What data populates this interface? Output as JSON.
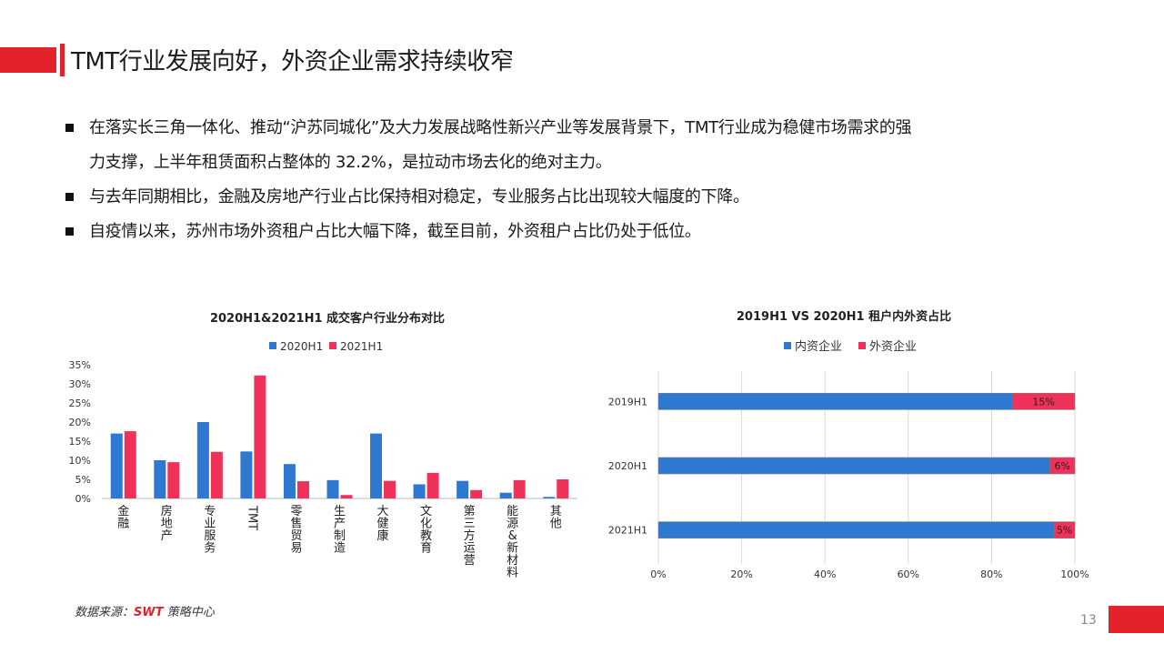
{
  "header": {
    "title": "TMT行业发展向好，外资企业需求持续收窄"
  },
  "bullets": [
    {
      "line1": "在落实长三角一体化、推动“沪苏同城化”及大力发展战略性新兴产业等发展背景下，TMT行业成为稳健市场需求的强",
      "line2": "力支撑，上半年租赁面积占整体的 32.2%，是拉动市场去化的绝对主力。"
    },
    {
      "line1": "与去年同期相比，金融及房地产行业占比保持相对稳定，专业服务占比出现较大幅度的下降。"
    },
    {
      "line1": "自疫情以来，苏州市场外资租户占比大幅下降，截至目前，外资租户占比仍处于低位。"
    }
  ],
  "chart_data": [
    {
      "type": "bar",
      "title": "2020H1&2021H1 成交客户行业分布对比",
      "categories": [
        "金融",
        "房地产",
        "专业服务",
        "TMT",
        "零售贸易",
        "生产制造",
        "大健康",
        "文化教育",
        "第三方运营",
        "能源&新材料",
        "其他"
      ],
      "series": [
        {
          "name": "2020H1",
          "color": "#2e78d2",
          "values": [
            17,
            10,
            20,
            12.3,
            9,
            4.8,
            17,
            3.7,
            4.6,
            1.5,
            0.4
          ]
        },
        {
          "name": "2021H1",
          "color": "#f0325a",
          "values": [
            17.6,
            9.5,
            12.2,
            32.2,
            4.5,
            0.9,
            4.6,
            6.7,
            2.2,
            4.8,
            5
          ]
        }
      ],
      "yticks": [
        "35%",
        "30%",
        "25%",
        "20%",
        "15%",
        "10%",
        "5%",
        "0%"
      ],
      "ylim": [
        0,
        35
      ],
      "legend": "top"
    },
    {
      "type": "bar",
      "orientation": "horizontal-stacked",
      "title": "2019H1 VS 2020H1 租户内外资占比",
      "categories": [
        "2019H1",
        "2020H1",
        "2021H1"
      ],
      "series": [
        {
          "name": "内资企业",
          "color": "#2e78d2",
          "values": [
            85,
            94,
            95
          ]
        },
        {
          "name": "外资企业",
          "color": "#f0325a",
          "values": [
            15,
            6,
            5
          ]
        }
      ],
      "data_labels": [
        "15%",
        "6%",
        "5%"
      ],
      "xticks": [
        "0%",
        "20%",
        "40%",
        "60%",
        "80%",
        "100%"
      ],
      "xlim": [
        0,
        100
      ],
      "legend": "top"
    }
  ],
  "footer": {
    "source_prefix": "数据来源：",
    "source_brand": "SWT",
    "source_suffix": " 策略中心",
    "page_number": "13"
  }
}
